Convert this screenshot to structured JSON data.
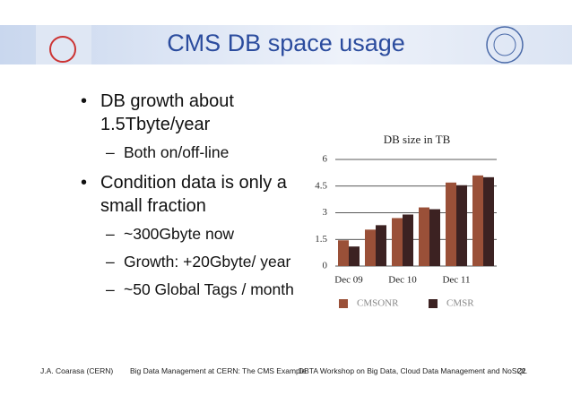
{
  "slide": {
    "title": "CMS DB space usage",
    "bullets": [
      {
        "level": 1,
        "text": "DB growth about 1.5Tbyte/year"
      },
      {
        "level": 2,
        "text": "Both on/off-line"
      },
      {
        "level": 1,
        "text": "Condition data is only a small fraction"
      },
      {
        "level": 2,
        "text": "~300Gbyte now"
      },
      {
        "level": 2,
        "text": "Growth: +20Gbyte/ year"
      },
      {
        "level": 2,
        "text": "~50 Global Tags / month"
      }
    ]
  },
  "footer": [
    "J.A. Coarasa (CERN)",
    "Big Data Management at CERN: The CMS Example",
    "DBTA Workshop on Big Data, Cloud Data Management and NoSQL"
  ],
  "page_number": 22,
  "chart_data": {
    "type": "bar",
    "title": "DB size in TB",
    "categories": [
      "Dec 09",
      null,
      "Dec 10",
      null,
      "Dec 11",
      null
    ],
    "series": [
      {
        "name": "CMSONR",
        "color": "#9a5038",
        "values": [
          1.45,
          2.05,
          2.7,
          3.3,
          4.7,
          5.1
        ]
      },
      {
        "name": "CMSR",
        "color": "#3c2222",
        "values": [
          1.1,
          2.3,
          2.9,
          3.2,
          4.55,
          5.0
        ]
      }
    ],
    "ylim": [
      0,
      6
    ],
    "yticks": [
      0,
      1.5,
      3,
      4.5,
      6
    ],
    "grid": true,
    "legend": "bottom"
  }
}
